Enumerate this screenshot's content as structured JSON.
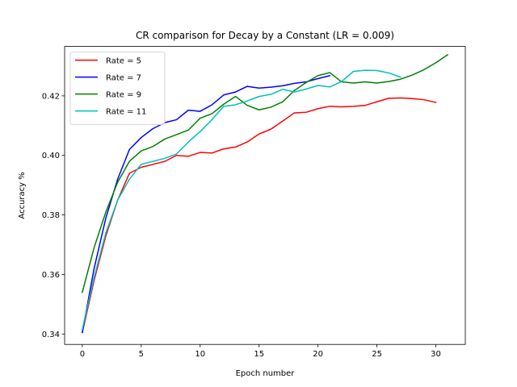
{
  "chart_data": {
    "type": "line",
    "title": "CR comparison for Decay by a Constant (LR = 0.009)",
    "xlabel": "Epoch number",
    "ylabel": "Accuracy %",
    "xlim": [
      -1.5,
      32.5
    ],
    "ylim": [
      0.3365,
      0.4366
    ],
    "xticks": [
      0,
      5,
      10,
      15,
      20,
      25,
      30
    ],
    "yticks": [
      0.34,
      0.36,
      0.38,
      0.4,
      0.42
    ],
    "ytick_labels": [
      "0.34",
      "0.36",
      "0.38",
      "0.40",
      "0.42"
    ],
    "grid": false,
    "legend_position": "upper-left",
    "series": [
      {
        "name": "Rate = 5",
        "color": "#ff0000",
        "x": [
          0,
          1,
          2,
          3,
          4,
          5,
          6,
          7,
          8,
          9,
          10,
          11,
          12,
          13,
          14,
          15,
          16,
          17,
          18,
          19,
          20,
          21,
          22,
          23,
          24,
          25,
          26,
          27,
          28,
          29,
          30
        ],
        "values": [
          0.3405,
          0.358,
          0.373,
          0.385,
          0.394,
          0.396,
          0.397,
          0.398,
          0.4,
          0.3997,
          0.401,
          0.4008,
          0.4022,
          0.4028,
          0.4045,
          0.4072,
          0.4088,
          0.4115,
          0.4143,
          0.4145,
          0.4157,
          0.4165,
          0.4163,
          0.4165,
          0.4168,
          0.418,
          0.4192,
          0.4193,
          0.4191,
          0.4187,
          0.4178
        ]
      },
      {
        "name": "Rate = 7",
        "color": "#0000ff",
        "x": [
          0,
          1,
          2,
          3,
          4,
          5,
          6,
          7,
          8,
          9,
          10,
          11,
          12,
          13,
          14,
          15,
          16,
          17,
          18,
          19,
          20,
          21
        ],
        "values": [
          0.3405,
          0.362,
          0.379,
          0.392,
          0.402,
          0.406,
          0.409,
          0.411,
          0.412,
          0.4152,
          0.4148,
          0.417,
          0.4203,
          0.4213,
          0.4232,
          0.4226,
          0.4229,
          0.4234,
          0.4242,
          0.4247,
          0.4258,
          0.4268
        ]
      },
      {
        "name": "Rate = 9",
        "color": "#008000",
        "x": [
          0,
          1,
          2,
          3,
          4,
          5,
          6,
          7,
          8,
          9,
          10,
          11,
          12,
          13,
          14,
          15,
          16,
          17,
          18,
          19,
          20,
          21,
          22,
          23,
          24,
          25,
          26,
          27,
          28,
          29,
          30,
          31
        ],
        "values": [
          0.354,
          0.369,
          0.381,
          0.391,
          0.398,
          0.4015,
          0.403,
          0.4055,
          0.407,
          0.4085,
          0.4125,
          0.414,
          0.4172,
          0.4198,
          0.4168,
          0.4153,
          0.4162,
          0.418,
          0.4218,
          0.4245,
          0.4268,
          0.4278,
          0.4247,
          0.4243,
          0.4247,
          0.4243,
          0.4248,
          0.4256,
          0.427,
          0.4288,
          0.4311,
          0.4338
        ]
      },
      {
        "name": "Rate = 11",
        "color": "#00bfbf",
        "x": [
          0,
          1,
          2,
          3,
          4,
          5,
          6,
          7,
          8,
          9,
          10,
          11,
          12,
          13,
          14,
          15,
          16,
          17,
          18,
          19,
          20,
          21,
          22,
          23,
          24,
          25,
          26,
          27
        ],
        "values": [
          0.3415,
          0.359,
          0.374,
          0.385,
          0.392,
          0.397,
          0.398,
          0.399,
          0.4005,
          0.4045,
          0.408,
          0.412,
          0.4165,
          0.417,
          0.4183,
          0.4198,
          0.4205,
          0.4222,
          0.4213,
          0.4223,
          0.4235,
          0.423,
          0.4248,
          0.4282,
          0.4286,
          0.4285,
          0.4277,
          0.4263
        ]
      }
    ]
  }
}
